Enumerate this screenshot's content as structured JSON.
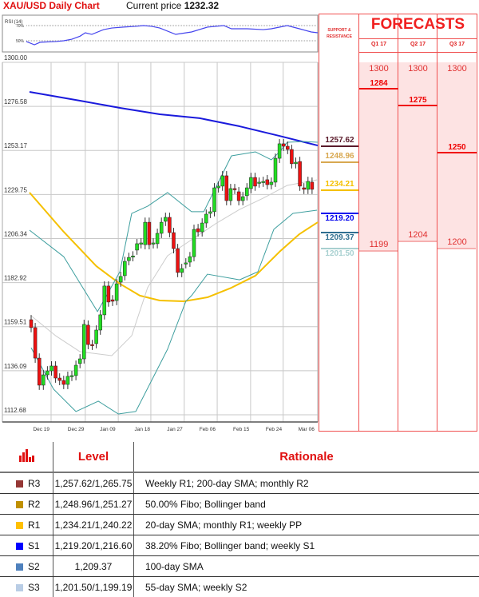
{
  "header": {
    "title": "XAU/USD Daily Chart",
    "current_price_label": "Current price",
    "current_price": "1232.32"
  },
  "colors": {
    "bull": "#22dd22",
    "bear": "#ee1111",
    "sma200": "#1a1adc",
    "sma55": "#f5c000",
    "bollinger": "#3d9e9e",
    "bb_mid": "#cccccc",
    "rsi": "#4444ee",
    "accent": "#e01010"
  },
  "chart_data": [
    {
      "type": "candlestick",
      "title": "XAU/USD Daily Chart",
      "y_ticks": [
        1300.0,
        1276.58,
        1253.17,
        1229.75,
        1206.34,
        1182.92,
        1159.51,
        1136.09,
        1112.68
      ],
      "ylim": [
        1112.68,
        1300.0
      ],
      "x_ticks": [
        {
          "label": "Dec 19",
          "i": 2.5
        },
        {
          "label": "Dec 29",
          "i": 11
        },
        {
          "label": "Jan 09",
          "i": 18.8
        },
        {
          "label": "Jan 18",
          "i": 27.3
        },
        {
          "label": "Jan 27",
          "i": 35.3
        },
        {
          "label": "Feb 06",
          "i": 43.3
        },
        {
          "label": "Feb 15",
          "i": 51.6
        },
        {
          "label": "Feb 24",
          "i": 59.6
        },
        {
          "label": "Mar 06",
          "i": 67.6
        }
      ],
      "grid": true,
      "ohlc_oc": [
        [
          1161.5,
          1157.3
        ],
        [
          1157.3,
          1141.1
        ],
        [
          1141.1,
          1126.7
        ],
        [
          1126.7,
          1132.2
        ],
        [
          1132.2,
          1134.3
        ],
        [
          1134.3,
          1136.9
        ],
        [
          1136.9,
          1130.5
        ],
        [
          1130.5,
          1129.2
        ],
        [
          1129.2,
          1127.1
        ],
        [
          1127.1,
          1131.4
        ],
        [
          1131.4,
          1131.8
        ],
        [
          1131.8,
          1137.3
        ],
        [
          1138.2,
          1140.7
        ],
        [
          1140.7,
          1159.0
        ],
        [
          1158.6,
          1148.3
        ],
        [
          1148.3,
          1147.9
        ],
        [
          1148.8,
          1156.0
        ],
        [
          1156.0,
          1164.1
        ],
        [
          1164.1,
          1179.4
        ],
        [
          1179.4,
          1170.9
        ],
        [
          1172.1,
          1171.3
        ],
        [
          1171.7,
          1180.6
        ],
        [
          1181.5,
          1184.5
        ],
        [
          1184.9,
          1192.5
        ],
        [
          1192.9,
          1194.6
        ],
        [
          1195.0,
          1195.4
        ],
        [
          1198.5,
          1201.9
        ],
        [
          1201.9,
          1202.3
        ],
        [
          1201.4,
          1213.3
        ],
        [
          1213.3,
          1201.4
        ],
        [
          1201.9,
          1202.3
        ],
        [
          1201.9,
          1207.4
        ],
        [
          1207.4,
          1213.3
        ],
        [
          1213.8,
          1215.9
        ],
        [
          1215.9,
          1207.8
        ],
        [
          1207.8,
          1199.3
        ],
        [
          1199.3,
          1186.6
        ],
        [
          1186.6,
          1188.7
        ],
        [
          1191.3,
          1191.7
        ],
        [
          1192.1,
          1195.0
        ],
        [
          1195.0,
          1209.5
        ],
        [
          1209.9,
          1208.2
        ],
        [
          1208.2,
          1212.9
        ],
        [
          1212.9,
          1217.6
        ],
        [
          1218.0,
          1218.9
        ],
        [
          1218.9,
          1231.6
        ],
        [
          1231.6,
          1232.5
        ],
        [
          1232.5,
          1238.0
        ],
        [
          1238.0,
          1224.8
        ],
        [
          1224.8,
          1231.2
        ],
        [
          1231.2,
          1230.8
        ],
        [
          1229.5,
          1224.8
        ],
        [
          1224.8,
          1226.9
        ],
        [
          1227.4,
          1231.6
        ],
        [
          1231.2,
          1237.1
        ],
        [
          1237.1,
          1232.5
        ],
        [
          1234.2,
          1234.6
        ],
        [
          1234.6,
          1235.0
        ],
        [
          1235.9,
          1233.3
        ],
        [
          1233.3,
          1234.6
        ],
        [
          1234.6,
          1247.3
        ],
        [
          1247.3,
          1255.0
        ],
        [
          1255.0,
          1253.7
        ],
        [
          1253.7,
          1252.0
        ],
        [
          1252.0,
          1244.4
        ],
        [
          1244.4,
          1245.2
        ],
        [
          1245.6,
          1232.5
        ],
        [
          1231.6,
          1230.8
        ],
        [
          1230.8,
          1235.0
        ],
        [
          1234.6,
          1230.8
        ]
      ],
      "lines": [
        {
          "key": "sma200",
          "points": [
            [
              -0.4,
              1282.6
            ],
            [
              12,
              1277.9
            ],
            [
              21.8,
              1274.1
            ],
            [
              31.6,
              1270.7
            ],
            [
              41.4,
              1268.6
            ],
            [
              51.2,
              1264.3
            ],
            [
              61,
              1259.2
            ],
            [
              70.4,
              1254.1
            ]
          ]
        },
        {
          "key": "sma55",
          "points": [
            [
              -0.4,
              1229.1
            ],
            [
              8,
              1208.2
            ],
            [
              16,
              1190
            ],
            [
              21.8,
              1180.6
            ],
            [
              26.7,
              1174.3
            ],
            [
              31.6,
              1171.7
            ],
            [
              37.5,
              1171.3
            ],
            [
              43.3,
              1173.4
            ],
            [
              49.2,
              1178.5
            ],
            [
              55.1,
              1184.9
            ],
            [
              61,
              1197.6
            ],
            [
              65.9,
              1207
            ],
            [
              70.4,
              1213.3
            ]
          ]
        },
        {
          "key": "bb_upper",
          "points": [
            [
              -0.4,
              1209.1
            ],
            [
              8,
              1195
            ],
            [
              16.3,
              1165.8
            ],
            [
              21.8,
              1187
            ],
            [
              24.7,
              1218
            ],
            [
              28.6,
              1221.8
            ],
            [
              33.5,
              1229.1
            ],
            [
              39.4,
              1218.9
            ],
            [
              42.4,
              1218.9
            ],
            [
              45.3,
              1231.6
            ],
            [
              49.2,
              1248.6
            ],
            [
              55.1,
              1250.7
            ],
            [
              59,
              1246.5
            ],
            [
              61,
              1250.7
            ],
            [
              62.9,
              1255.8
            ],
            [
              66.9,
              1256.2
            ],
            [
              70.4,
              1255.8
            ]
          ]
        },
        {
          "key": "bb_lower",
          "points": [
            [
              0,
              1146.6
            ],
            [
              5.5,
              1124.6
            ],
            [
              11,
              1112.7
            ],
            [
              16.5,
              1118.2
            ],
            [
              21.4,
              1111.4
            ],
            [
              25.7,
              1112.7
            ],
            [
              33.5,
              1145.8
            ],
            [
              38,
              1171.3
            ],
            [
              39.4,
              1174.3
            ],
            [
              43.3,
              1185.7
            ],
            [
              51.2,
              1182.7
            ],
            [
              55.7,
              1187
            ],
            [
              59.6,
              1209.5
            ],
            [
              64.3,
              1218
            ],
            [
              70.2,
              1219.7
            ]
          ]
        },
        {
          "key": "bb_mid",
          "points": [
            [
              0,
              1163.6
            ],
            [
              6,
              1153.0
            ],
            [
              12,
              1144.5
            ],
            [
              19.8,
              1142.4
            ],
            [
              24.7,
              1153
            ],
            [
              28.6,
              1178.5
            ],
            [
              33.5,
              1195.5
            ],
            [
              39.4,
              1204
            ],
            [
              45.3,
              1212.5
            ],
            [
              51.2,
              1220.1
            ],
            [
              57,
              1226.1
            ],
            [
              62.9,
              1232.9
            ],
            [
              70.4,
              1235.9
            ]
          ]
        }
      ]
    },
    {
      "type": "line",
      "title": "RSI (14)",
      "y_ticks": [
        {
          "value": 70,
          "label": "70%"
        },
        {
          "value": 50,
          "label": "50%"
        }
      ],
      "points": [
        [
          -1.2,
          49
        ],
        [
          0.8,
          44.7
        ],
        [
          2.2,
          48
        ],
        [
          6.1,
          49
        ],
        [
          8,
          50
        ],
        [
          10,
          52
        ],
        [
          12,
          56
        ],
        [
          13.3,
          60.5
        ],
        [
          14.9,
          58.4
        ],
        [
          17.8,
          64.7
        ],
        [
          19.8,
          66.8
        ],
        [
          22.7,
          68
        ],
        [
          25.7,
          69
        ],
        [
          27.6,
          70
        ],
        [
          29.6,
          69
        ],
        [
          31.6,
          66.8
        ],
        [
          35.5,
          58.4
        ],
        [
          39.4,
          61.6
        ],
        [
          43.3,
          68
        ],
        [
          47.3,
          70
        ],
        [
          49.2,
          65.8
        ],
        [
          53.1,
          65.8
        ],
        [
          57,
          64.7
        ],
        [
          59,
          65.8
        ],
        [
          62.9,
          70
        ],
        [
          65.9,
          65.8
        ],
        [
          68.8,
          61.6
        ],
        [
          70.4,
          60.5
        ]
      ]
    }
  ],
  "forecasts": {
    "title": "FORECASTS",
    "sr_title": "SUPPORT & RESISTANCE",
    "quarters": [
      {
        "label": "Q1 17",
        "high": "1300",
        "mid": "1284",
        "low": "1199"
      },
      {
        "label": "Q2 17",
        "high": "1300",
        "mid": "1275",
        "low": "1204"
      },
      {
        "label": "Q3 17",
        "high": "1300",
        "mid": "1250",
        "low": "1200"
      }
    ],
    "levels": [
      {
        "value": "1257.62",
        "color": "#5a1a2a"
      },
      {
        "value": "1248.96",
        "color": "#d8a850"
      },
      {
        "value": "1234.21",
        "color": "#f5c000"
      },
      {
        "value": "1219.20",
        "color": "#0000ee"
      },
      {
        "value": "1209.37",
        "color": "#2f6f90"
      },
      {
        "value": "1201.50",
        "color": "#a8d0d0"
      }
    ]
  },
  "table": {
    "icon": "bar-chart-icon",
    "headers": [
      "Level",
      "Rationale"
    ],
    "rows": [
      {
        "name": "R3",
        "color": "#953735",
        "level": "1,257.62/1,265.75",
        "rationale": "Weekly R1; 200-day SMA; monthly R2"
      },
      {
        "name": "R2",
        "color": "#c09000",
        "level": "1,248.96/1,251.27",
        "rationale": "50.00% Fibo; Bollinger band"
      },
      {
        "name": "R1",
        "color": "#ffc000",
        "level": "1,234.21/1,240.22",
        "rationale": "20-day SMA; monthly R1; weekly PP"
      },
      {
        "name": "S1",
        "color": "#0000ff",
        "level": "1,219.20/1,216.60",
        "rationale": "38.20% Fibo; Bollinger band; weekly S1"
      },
      {
        "name": "S2",
        "color": "#4f81bd",
        "level": "1,209.37",
        "rationale": "100-day SMA"
      },
      {
        "name": "S3",
        "color": "#b9cde5",
        "level": "1,201.50/1,199.19",
        "rationale": "55-day SMA; weekly S2"
      }
    ]
  }
}
